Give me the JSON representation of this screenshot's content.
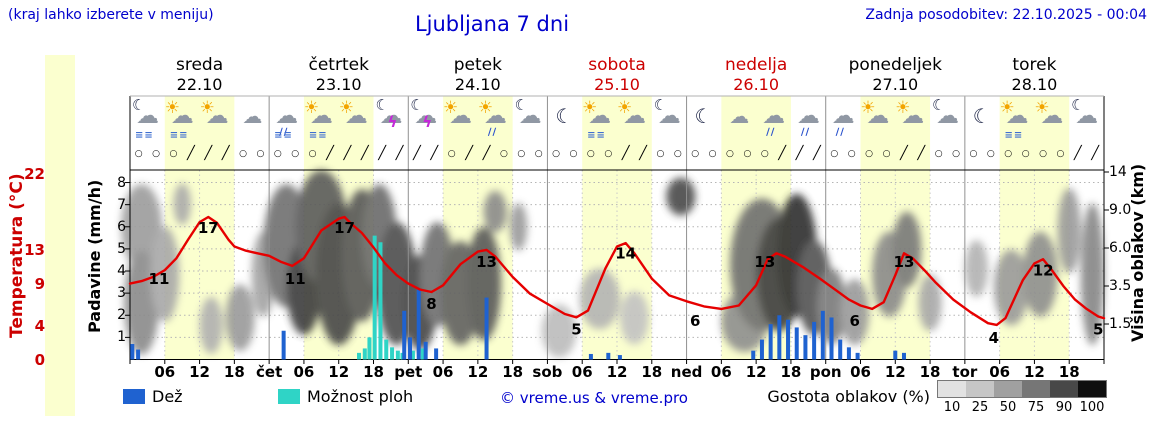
{
  "header": {
    "hint": "(kraj lahko izberete v meniju)",
    "title": "Ljubljana 7 dni",
    "updated": "Zadnja posodobitev: 22.10.2025 - 00:04"
  },
  "colors": {
    "accent_blue": "#0000cc",
    "red": "#cc0000",
    "temp": "#e60000",
    "rain": "#1f62d0",
    "shower": "#2fd4c6",
    "day_band": "#fbffcf",
    "density_scale": [
      "#e2e2e2",
      "#c6c6c6",
      "#a0a0a0",
      "#767676",
      "#484848",
      "#0e0e0e"
    ]
  },
  "days": [
    {
      "name": "sreda",
      "date": "22.10",
      "red": false
    },
    {
      "name": "četrtek",
      "date": "23.10",
      "red": false
    },
    {
      "name": "petek",
      "date": "24.10",
      "red": false
    },
    {
      "name": "sobota",
      "date": "25.10",
      "red": true
    },
    {
      "name": "nedelja",
      "date": "26.10",
      "red": true
    },
    {
      "name": "ponedeljek",
      "date": "27.10",
      "red": false
    },
    {
      "name": "torek",
      "date": "28.10",
      "red": false
    }
  ],
  "axes": {
    "temp_label": "Temperatura (°C)",
    "precip_label": "Padavine (mm/h)",
    "cloud_label": "Višina oblakov (km)",
    "temp_ticks": [
      22,
      13,
      9,
      4,
      0
    ],
    "precip_ticks": [
      8,
      7,
      6,
      5,
      4,
      3,
      2,
      1
    ],
    "cloud_ticks": [
      "14",
      "9.0",
      "6.0",
      "3.5",
      "1.5"
    ],
    "time_labels": [
      "06",
      "12",
      "18"
    ],
    "day_abbrevs": [
      "čet",
      "pet",
      "sob",
      "ned",
      "pon",
      "tor"
    ]
  },
  "legend": {
    "rain": "Dež",
    "showers": "Možnost ploh",
    "credit": "© vreme.us & vreme.pro",
    "cloud_density": "Gostota oblakov (%)",
    "density_ticks": [
      "10",
      "25",
      "50",
      "75",
      "90",
      "100"
    ]
  },
  "icons": [
    "moon-cloud-fog",
    "sun-cloud-fog",
    "sun-cloud",
    "cloud",
    "cloud-rain-fog",
    "sun-cloud-fog",
    "sun-cloud",
    "moon-cloud-storm",
    "moon-cloud-storm",
    "sun-cloud",
    "sun-cloud-rain",
    "moon-cloud",
    "moon",
    "sun-cloud-fog",
    "sun-cloud",
    "moon-cloud",
    "moon",
    "cloud",
    "cloud-rain",
    "cloud-rain",
    "cloud-rain",
    "sun-cloud",
    "sun-cloud",
    "moon-cloud",
    "moon",
    "sun-cloud-fog",
    "sun-cloud",
    "moon-cloud"
  ],
  "wind": [
    "○",
    "○",
    "○",
    "╱",
    "╱",
    "╱",
    "○",
    "○",
    "○",
    "○",
    "○",
    "╱",
    "╱",
    "╱",
    "╱",
    "╱",
    "╱",
    "╱",
    "○",
    "╱",
    "╱",
    "○",
    "○",
    "○",
    "○",
    "○",
    "○",
    "○",
    "╱",
    "╱",
    "○",
    "○",
    "○",
    "○",
    "○",
    "○",
    "○",
    "╱",
    "╱",
    "╱",
    "○",
    "○",
    "○",
    "○",
    "╱",
    "╱",
    "○",
    "○",
    "○",
    "○",
    "○",
    "○",
    "○",
    "○",
    "╱",
    "╱"
  ],
  "chart_data": {
    "type": "line",
    "description": "7-day meteogram for Ljubljana: red temperature curve (°C), blue rain bars and cyan shower-probability bars (mm/h), gray blobs showing cloud density vs cloud height (km); x axis in hours from 22.10.2025 00:00",
    "title": "Ljubljana 7 dni",
    "x_unit": "hours",
    "x_range": [
      0,
      168
    ],
    "grid": true,
    "temperature": {
      "unit": "°C",
      "axis_range": [
        0,
        22
      ],
      "points": [
        [
          0,
          9.0
        ],
        [
          2,
          9.3
        ],
        [
          4,
          9.8
        ],
        [
          6,
          10.6
        ],
        [
          8,
          12.0
        ],
        [
          10,
          14.2
        ],
        [
          12,
          16.3
        ],
        [
          13.5,
          16.9
        ],
        [
          15,
          16.2
        ],
        [
          17,
          14.2
        ],
        [
          18,
          13.4
        ],
        [
          20,
          12.9
        ],
        [
          22,
          12.6
        ],
        [
          24,
          12.3
        ],
        [
          26,
          11.6
        ],
        [
          28,
          11.1
        ],
        [
          30,
          12.0
        ],
        [
          33,
          15.3
        ],
        [
          36,
          16.7
        ],
        [
          37,
          16.9
        ],
        [
          38,
          16.2
        ],
        [
          40,
          15.0
        ],
        [
          42,
          13.3
        ],
        [
          44,
          11.4
        ],
        [
          46,
          10.0
        ],
        [
          48,
          9.0
        ],
        [
          50,
          8.3
        ],
        [
          52,
          8.0
        ],
        [
          54,
          8.8
        ],
        [
          57,
          11.3
        ],
        [
          60,
          12.8
        ],
        [
          61.5,
          13.0
        ],
        [
          63,
          12.2
        ],
        [
          66,
          9.8
        ],
        [
          69,
          7.8
        ],
        [
          72,
          6.6
        ],
        [
          75,
          5.4
        ],
        [
          77,
          5.0
        ],
        [
          79,
          5.8
        ],
        [
          82,
          10.8
        ],
        [
          84,
          13.4
        ],
        [
          85.5,
          13.8
        ],
        [
          87,
          12.6
        ],
        [
          90,
          9.6
        ],
        [
          93,
          7.6
        ],
        [
          96,
          6.9
        ],
        [
          99,
          6.3
        ],
        [
          102,
          6.0
        ],
        [
          105,
          6.4
        ],
        [
          108,
          8.8
        ],
        [
          110,
          11.9
        ],
        [
          111.5,
          12.6
        ],
        [
          113,
          12.2
        ],
        [
          116,
          11.0
        ],
        [
          119,
          9.6
        ],
        [
          122,
          8.1
        ],
        [
          124,
          7.1
        ],
        [
          126,
          6.4
        ],
        [
          128,
          6.0
        ],
        [
          130,
          6.8
        ],
        [
          132,
          10.0
        ],
        [
          133.5,
          12.6
        ],
        [
          135,
          12.0
        ],
        [
          137,
          10.6
        ],
        [
          139,
          9.1
        ],
        [
          142,
          7.1
        ],
        [
          145,
          5.6
        ],
        [
          148,
          4.3
        ],
        [
          149.5,
          4.1
        ],
        [
          151,
          4.9
        ],
        [
          154,
          9.4
        ],
        [
          156,
          11.4
        ],
        [
          157.5,
          11.9
        ],
        [
          159,
          10.6
        ],
        [
          161,
          8.7
        ],
        [
          163,
          7.1
        ],
        [
          165,
          6.0
        ],
        [
          167,
          5.1
        ],
        [
          168,
          4.9
        ]
      ]
    },
    "temperature_labels": [
      [
        5,
        "11"
      ],
      [
        13.5,
        "17"
      ],
      [
        28.5,
        "11"
      ],
      [
        37,
        "17"
      ],
      [
        52,
        "8"
      ],
      [
        61.5,
        "13"
      ],
      [
        77,
        "5"
      ],
      [
        85.5,
        "14"
      ],
      [
        97.5,
        "6"
      ],
      [
        109.5,
        "13"
      ],
      [
        125,
        "6"
      ],
      [
        133.5,
        "13"
      ],
      [
        149,
        "4"
      ],
      [
        157.5,
        "12"
      ],
      [
        167,
        "5"
      ]
    ],
    "daily_min_max": [
      {
        "day": "sreda",
        "min": 11,
        "max": 17
      },
      {
        "day": "četrtek",
        "min": 11,
        "max": 17
      },
      {
        "day": "petek",
        "min": 8,
        "max": 13
      },
      {
        "day": "sobota",
        "min": 5,
        "max": 14
      },
      {
        "day": "nedelja",
        "min": 6,
        "max": 13
      },
      {
        "day": "ponedeljek",
        "min": 6,
        "max": 13
      },
      {
        "day": "torek",
        "min": 4,
        "max": 12
      }
    ],
    "rain_bars": {
      "unit": "mm/h",
      "axis_range": [
        0,
        8
      ],
      "points": [
        [
          0.4,
          0.7
        ],
        [
          1.4,
          0.45
        ],
        [
          26.5,
          1.3
        ],
        [
          47.3,
          2.2
        ],
        [
          48.3,
          1.0
        ],
        [
          49.8,
          3.2
        ],
        [
          51.0,
          0.8
        ],
        [
          52.8,
          0.5
        ],
        [
          61.5,
          2.8
        ],
        [
          79.5,
          0.25
        ],
        [
          82.5,
          0.3
        ],
        [
          84.5,
          0.2
        ],
        [
          107.5,
          0.4
        ],
        [
          109,
          0.9
        ],
        [
          110.5,
          1.6
        ],
        [
          112,
          2.0
        ],
        [
          113.5,
          1.8
        ],
        [
          115,
          1.45
        ],
        [
          116.5,
          1.1
        ],
        [
          118,
          1.7
        ],
        [
          119.5,
          2.2
        ],
        [
          121,
          1.9
        ],
        [
          122.5,
          0.9
        ],
        [
          124,
          0.55
        ],
        [
          125.5,
          0.3
        ],
        [
          132,
          0.4
        ],
        [
          133.5,
          0.3
        ]
      ]
    },
    "shower_bars": {
      "unit": "mm/h",
      "points": [
        [
          39.5,
          0.3
        ],
        [
          40.5,
          0.5
        ],
        [
          41.3,
          1.0
        ],
        [
          42.2,
          5.6
        ],
        [
          43.2,
          5.3
        ],
        [
          44.2,
          0.9
        ],
        [
          45.2,
          0.55
        ],
        [
          46.2,
          0.4
        ],
        [
          47.0,
          0.3
        ],
        [
          48.8,
          0.4
        ],
        [
          50.5,
          0.5
        ]
      ]
    },
    "cloud_blobs": [
      [
        2,
        0.3,
        7,
        0.45,
        "#9c9c9c"
      ],
      [
        2,
        0.7,
        6,
        0.55,
        "#8a8a8a"
      ],
      [
        6,
        0.55,
        5,
        0.5,
        "#a8a8a8"
      ],
      [
        9,
        0.18,
        3,
        0.22,
        "#aaaaaa"
      ],
      [
        14,
        0.82,
        4,
        0.3,
        "#b0b0b0"
      ],
      [
        19,
        0.78,
        5,
        0.35,
        "#9a9a9a"
      ],
      [
        23,
        0.55,
        4,
        0.45,
        "#a2a2a2"
      ],
      [
        27,
        0.4,
        8,
        0.65,
        "#6f6f6f"
      ],
      [
        30,
        0.62,
        6,
        0.5,
        "#3c3c3c"
      ],
      [
        33,
        0.3,
        9,
        0.6,
        "#5a5a5a"
      ],
      [
        36,
        0.55,
        8,
        0.75,
        "#474747"
      ],
      [
        40,
        0.45,
        7,
        0.7,
        "#565656"
      ],
      [
        43,
        0.35,
        6,
        0.55,
        "#6a6a6a"
      ],
      [
        46,
        0.6,
        7,
        0.65,
        "#4e4e4e"
      ],
      [
        50,
        0.7,
        6,
        0.5,
        "#454545"
      ],
      [
        53,
        0.55,
        6,
        0.55,
        "#6e6e6e"
      ],
      [
        57,
        0.65,
        7,
        0.55,
        "#606060"
      ],
      [
        61,
        0.6,
        6,
        0.6,
        "#585858"
      ],
      [
        63,
        0.22,
        4,
        0.22,
        "#8a8a8a"
      ],
      [
        67,
        0.3,
        3,
        0.25,
        "#9a9a9a"
      ],
      [
        74,
        0.85,
        6,
        0.28,
        "#bcbcbc"
      ],
      [
        81,
        0.68,
        7,
        0.32,
        "#b4b4b4"
      ],
      [
        87,
        0.78,
        5,
        0.28,
        "#c2c2c2"
      ],
      [
        95,
        0.14,
        5,
        0.2,
        "#4a4a4a"
      ],
      [
        106,
        0.8,
        8,
        0.32,
        "#8e8e8e"
      ],
      [
        109,
        0.5,
        11,
        0.7,
        "#6e6e6e"
      ],
      [
        112,
        0.55,
        8,
        0.6,
        "#3e3e3e"
      ],
      [
        115,
        0.45,
        7,
        0.65,
        "#2e2e2e"
      ],
      [
        118,
        0.62,
        6,
        0.5,
        "#525252"
      ],
      [
        121,
        0.72,
        5,
        0.4,
        "#7a7a7a"
      ],
      [
        125,
        0.75,
        5,
        0.35,
        "#9a9a9a"
      ],
      [
        131,
        0.55,
        6,
        0.45,
        "#8a8a8a"
      ],
      [
        134,
        0.42,
        5,
        0.4,
        "#787878"
      ],
      [
        138,
        0.7,
        4,
        0.3,
        "#a8a8a8"
      ],
      [
        146,
        0.52,
        4,
        0.3,
        "#b2b2b2"
      ],
      [
        152,
        0.62,
        6,
        0.4,
        "#9a9a9a"
      ],
      [
        157,
        0.55,
        6,
        0.45,
        "#8e8e8e"
      ],
      [
        162,
        0.32,
        4,
        0.45,
        "#9a9a9a"
      ],
      [
        166,
        0.55,
        4,
        0.75,
        "#868686"
      ]
    ]
  }
}
